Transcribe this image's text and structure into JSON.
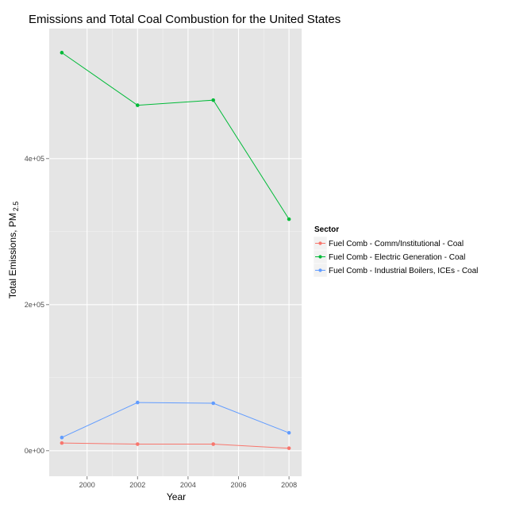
{
  "chart_data": {
    "type": "line",
    "title": "Emissions and Total Coal Combustion for the United States",
    "xlabel": "Year",
    "ylabel_main": "Total Emissions, PM",
    "ylabel_sub": "2.5",
    "x": [
      1999,
      2002,
      2005,
      2008
    ],
    "xlim": [
      1998.5,
      2008.5
    ],
    "ylim": [
      -35000,
      578000
    ],
    "x_ticks": [
      2000,
      2002,
      2004,
      2006,
      2008
    ],
    "x_tick_labels": [
      "2000",
      "2002",
      "2004",
      "2006",
      "2008"
    ],
    "y_ticks": [
      0,
      200000,
      400000
    ],
    "y_tick_labels": [
      "0e+00",
      "2e+05",
      "4e+05"
    ],
    "grid": true,
    "legend_title": "Sector",
    "legend_position": "right",
    "series": [
      {
        "name": "Fuel Comb - Comm/Institutional - Coal",
        "color": "#F8766D",
        "values": [
          10500,
          9000,
          9000,
          3400
        ]
      },
      {
        "name": "Fuel Comb - Electric Generation - Coal",
        "color": "#00BA38",
        "values": [
          545000,
          473000,
          480000,
          317000
        ]
      },
      {
        "name": "Fuel Comb - Industrial Boilers, ICEs - Coal",
        "color": "#619CFF",
        "values": [
          18000,
          66000,
          65000,
          24500
        ]
      }
    ]
  }
}
